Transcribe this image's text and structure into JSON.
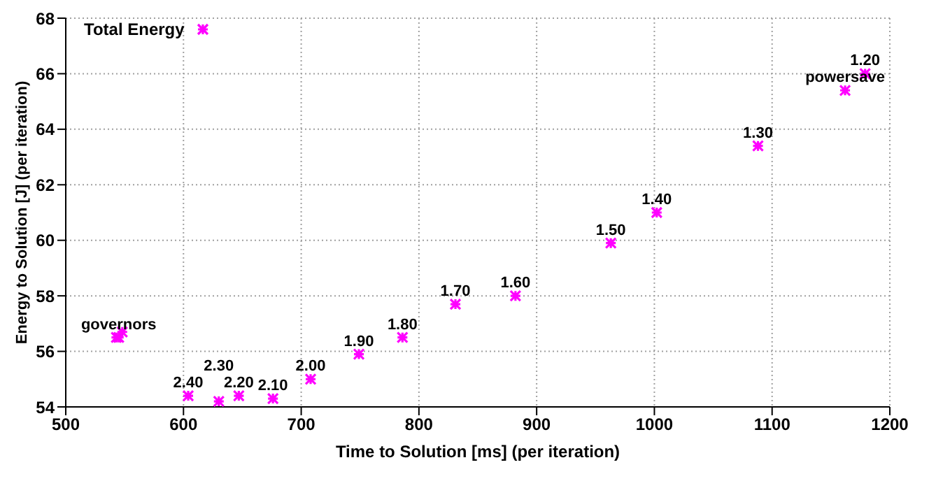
{
  "chart_data": {
    "type": "scatter",
    "xlabel": "Time to Solution [ms] (per iteration)",
    "ylabel": "Energy to Solution [J] (per iteration)",
    "x": [
      543,
      545,
      548,
      604,
      630,
      647,
      676,
      708,
      749,
      786,
      831,
      882,
      963,
      1002,
      1088,
      1162,
      1179
    ],
    "series": [
      {
        "name": "Total Energy",
        "color": "#ff00ff",
        "values": [
          56.5,
          56.5,
          56.7,
          54.4,
          54.2,
          54.4,
          54.3,
          55.0,
          55.9,
          56.5,
          57.7,
          58.0,
          59.9,
          61.0,
          63.4,
          65.4,
          66.0
        ]
      }
    ],
    "annotations": [
      {
        "text": "governors",
        "x": 545,
        "y": 56.5
      },
      {
        "text": "2.40",
        "x": 604,
        "y": 54.4
      },
      {
        "text": "2.30",
        "x": 630,
        "y": 54.2
      },
      {
        "text": "2.20",
        "x": 647,
        "y": 54.4
      },
      {
        "text": "2.10",
        "x": 676,
        "y": 54.3
      },
      {
        "text": "2.00",
        "x": 708,
        "y": 55.0
      },
      {
        "text": "1.90",
        "x": 749,
        "y": 55.9
      },
      {
        "text": "1.80",
        "x": 786,
        "y": 56.5
      },
      {
        "text": "1.70",
        "x": 831,
        "y": 57.7
      },
      {
        "text": "1.60",
        "x": 882,
        "y": 58.0
      },
      {
        "text": "1.50",
        "x": 963,
        "y": 59.9
      },
      {
        "text": "1.40",
        "x": 1002,
        "y": 61.0
      },
      {
        "text": "1.30",
        "x": 1088,
        "y": 63.4
      },
      {
        "text": "powersave",
        "x": 1162,
        "y": 65.4
      },
      {
        "text": "1.20",
        "x": 1179,
        "y": 66.0
      }
    ],
    "xlim": [
      500,
      1200
    ],
    "xticks": [
      500,
      600,
      700,
      800,
      900,
      1000,
      1100,
      1200
    ],
    "ylim": [
      54,
      68
    ],
    "yticks": [
      54,
      56,
      58,
      60,
      62,
      64,
      66,
      68
    ],
    "grid": true,
    "legend": "top left",
    "marker": "cross"
  }
}
